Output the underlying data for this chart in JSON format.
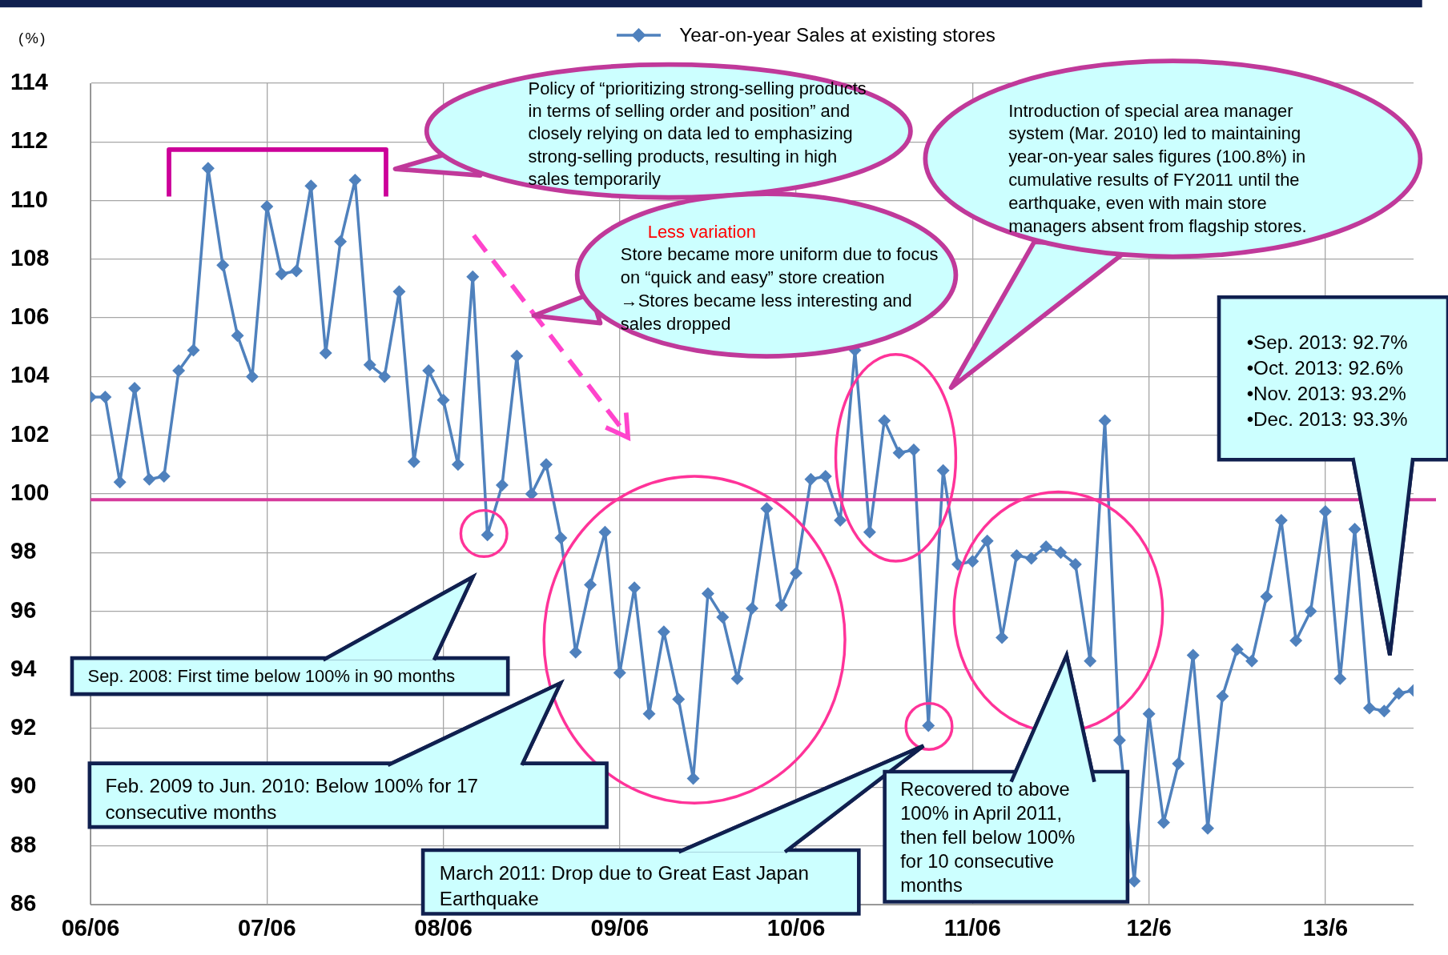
{
  "chart_data": {
    "type": "line",
    "ylabel": "(%)",
    "legend": "top",
    "grid": true,
    "marker": "diamond",
    "line_style": "solid",
    "xlim": [
      "2006-06",
      "2013-12"
    ],
    "xticks": [
      {
        "value": "2006-06",
        "label": "06/06"
      },
      {
        "value": "2007-06",
        "label": "07/06"
      },
      {
        "value": "2008-06",
        "label": "08/06"
      },
      {
        "value": "2009-06",
        "label": "09/06"
      },
      {
        "value": "2010-06",
        "label": "10/06"
      },
      {
        "value": "2011-06",
        "label": "11/06"
      },
      {
        "value": "2012-06",
        "label": "12/6"
      },
      {
        "value": "2013-06",
        "label": "13/6"
      }
    ],
    "ylim": [
      86,
      114
    ],
    "yticks": [
      86,
      88,
      90,
      92,
      94,
      96,
      98,
      100,
      102,
      104,
      106,
      108,
      110,
      112,
      114
    ],
    "x": [
      "2006-06",
      "2006-07",
      "2006-08",
      "2006-09",
      "2006-10",
      "2006-11",
      "2006-12",
      "2007-01",
      "2007-02",
      "2007-03",
      "2007-04",
      "2007-05",
      "2007-06",
      "2007-07",
      "2007-08",
      "2007-09",
      "2007-10",
      "2007-11",
      "2007-12",
      "2008-01",
      "2008-02",
      "2008-03",
      "2008-04",
      "2008-05",
      "2008-06",
      "2008-07",
      "2008-08",
      "2008-09",
      "2008-10",
      "2008-11",
      "2008-12",
      "2009-01",
      "2009-02",
      "2009-03",
      "2009-04",
      "2009-05",
      "2009-06",
      "2009-07",
      "2009-08",
      "2009-09",
      "2009-10",
      "2009-11",
      "2009-12",
      "2010-01",
      "2010-02",
      "2010-03",
      "2010-04",
      "2010-05",
      "2010-06",
      "2010-07",
      "2010-08",
      "2010-09",
      "2010-10",
      "2010-11",
      "2010-12",
      "2011-01",
      "2011-02",
      "2011-03",
      "2011-04",
      "2011-05",
      "2011-06",
      "2011-07",
      "2011-08",
      "2011-09",
      "2011-10",
      "2011-11",
      "2011-12",
      "2012-01",
      "2012-02",
      "2012-03",
      "2012-04",
      "2012-05",
      "2012-06",
      "2012-07",
      "2012-08",
      "2012-09",
      "2012-10",
      "2012-11",
      "2012-12",
      "2013-01",
      "2013-02",
      "2013-03",
      "2013-04",
      "2013-05",
      "2013-06",
      "2013-07",
      "2013-08",
      "2013-09",
      "2013-10",
      "2013-11",
      "2013-12"
    ],
    "series": [
      {
        "name": "Year-on-year Sales at existing stores",
        "color": "#4f81bd",
        "values": [
          103.3,
          103.3,
          100.4,
          103.6,
          100.5,
          100.6,
          104.2,
          104.9,
          111.1,
          107.8,
          105.4,
          104.0,
          109.8,
          107.5,
          107.6,
          110.5,
          104.8,
          108.6,
          110.7,
          104.4,
          104.0,
          106.9,
          101.1,
          104.2,
          103.2,
          101.0,
          107.4,
          98.6,
          100.3,
          104.7,
          100.0,
          101.0,
          98.5,
          94.6,
          96.9,
          98.7,
          93.9,
          96.8,
          92.5,
          95.3,
          93.0,
          90.3,
          96.6,
          95.8,
          93.7,
          96.1,
          99.5,
          96.2,
          97.3,
          100.5,
          100.6,
          99.1,
          104.9,
          98.7,
          102.5,
          101.4,
          101.5,
          92.1,
          100.8,
          97.6,
          97.7,
          98.4,
          95.1,
          97.9,
          97.8,
          98.2,
          98.0,
          97.6,
          94.3,
          102.5,
          91.6,
          86.8,
          92.5,
          88.8,
          90.8,
          94.5,
          88.6,
          93.1,
          94.7,
          94.3,
          96.5,
          99.1,
          95.0,
          96.0,
          99.4,
          93.7,
          98.8,
          92.7,
          92.6,
          93.2,
          93.3
        ]
      }
    ],
    "ref_lines": [
      {
        "axis": "y",
        "value": 99.8,
        "color": "#d63a9c"
      }
    ],
    "annotations": [
      "Policy of “prioritizing strong-selling products in terms of selling order and position” and closely relying on data led to emphasizing strong-selling products, resulting in high sales temporarily",
      "Less variation",
      "Store became more uniform due to focus on “quick and easy” store creation →Stores became less interesting and sales dropped",
      "Introduction of special area manager system (Mar. 2010) led to maintaining year-on-year sales figures (100.8%) in cumulative results of FY2011 until the earthquake, even with main store managers absent from flagship stores.",
      "•Sep. 2013: 92.7%\n•Oct. 2013: 92.6%\n•Nov. 2013: 93.2%\n•Dec. 2013: 93.3%",
      "Sep. 2008: First time below 100% in 90 months",
      "Feb. 2009 to Jun. 2010: Below 100% for 17 consecutive months",
      "March 2011: Drop due to Great East Japan Earthquake",
      "Recovered to above 100% in April 2011, then fell below 100% for 10 consecutive months"
    ]
  }
}
